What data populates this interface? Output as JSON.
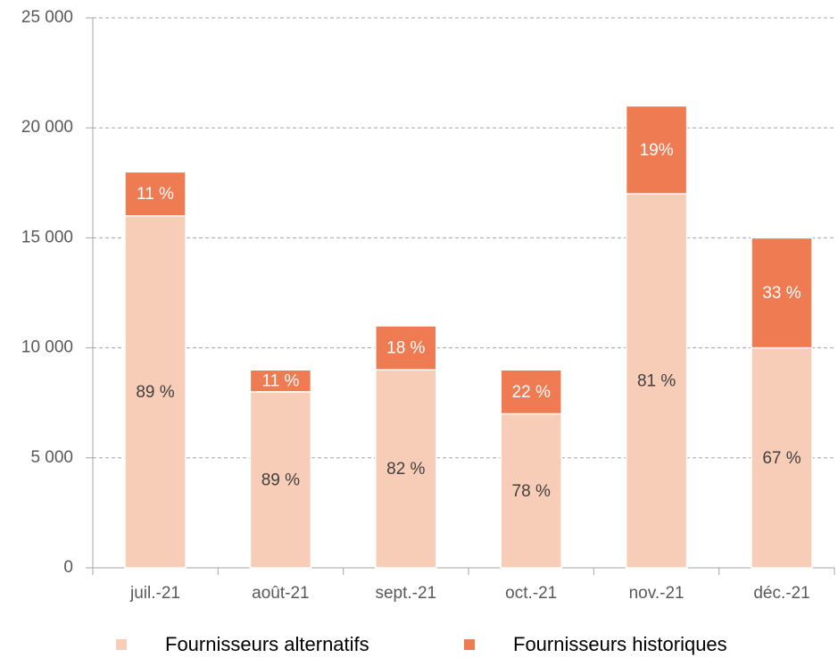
{
  "chart_data": {
    "type": "stacked_bar",
    "categories": [
      "juil.-21",
      "août-21",
      "sept.-21",
      "oct.-21",
      "nov.-21",
      "déc.-21"
    ],
    "series": [
      {
        "name": "Fournisseurs alternatifs",
        "color": "#f8cdb8",
        "values": [
          16000,
          8000,
          9000,
          7000,
          17000,
          10000
        ],
        "percent_labels": [
          "89 %",
          "89 %",
          "82 %",
          "78 %",
          "81 %",
          "67 %"
        ]
      },
      {
        "name": "Fournisseurs historiques",
        "color": "#ee7b52",
        "values": [
          2000,
          1000,
          2000,
          2000,
          4000,
          5000
        ],
        "percent_labels": [
          "11 %",
          "11 %",
          "18 %",
          "22 %",
          "19%",
          "33 %"
        ]
      }
    ],
    "ylim": [
      0,
      25000
    ],
    "yticks": [
      0,
      {
        "value": 5000,
        "label": "5 000"
      },
      {
        "value": 10000,
        "label": "10 000"
      },
      {
        "value": 15000,
        "label": "15 000"
      },
      {
        "value": 20000,
        "label": "20 000"
      },
      {
        "value": 25000,
        "label": "25 000"
      }
    ],
    "grid": true,
    "legend": "bottom"
  }
}
